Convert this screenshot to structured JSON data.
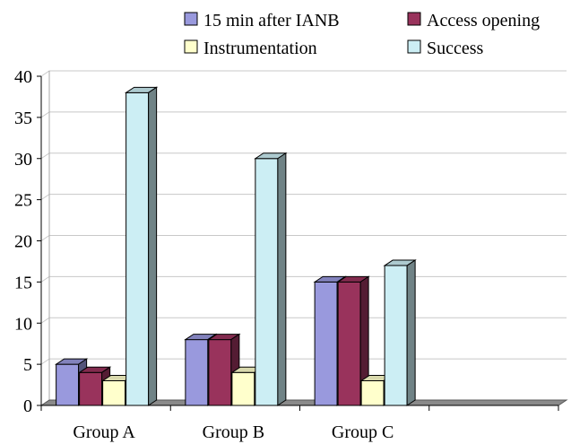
{
  "chart_data": {
    "type": "bar",
    "title": "",
    "xlabel": "",
    "ylabel": "",
    "ylim": [
      0,
      40
    ],
    "yticks": [
      0,
      5,
      10,
      15,
      20,
      25,
      30,
      35,
      40
    ],
    "grid": true,
    "legend_position": "top",
    "categories": [
      "Group A",
      "Group B",
      "Group C",
      ""
    ],
    "series": [
      {
        "name": "15 min after IANB",
        "color": "#9999dd",
        "values": [
          5,
          8,
          15,
          null
        ]
      },
      {
        "name": "Access opening",
        "color": "#99335c",
        "values": [
          4,
          8,
          15,
          null
        ]
      },
      {
        "name": "Instrumentation",
        "color": "#ffffcc",
        "values": [
          3,
          4,
          3,
          null
        ]
      },
      {
        "name": "Success",
        "color": "#cceef4",
        "values": [
          38,
          30,
          17,
          null
        ]
      }
    ]
  }
}
